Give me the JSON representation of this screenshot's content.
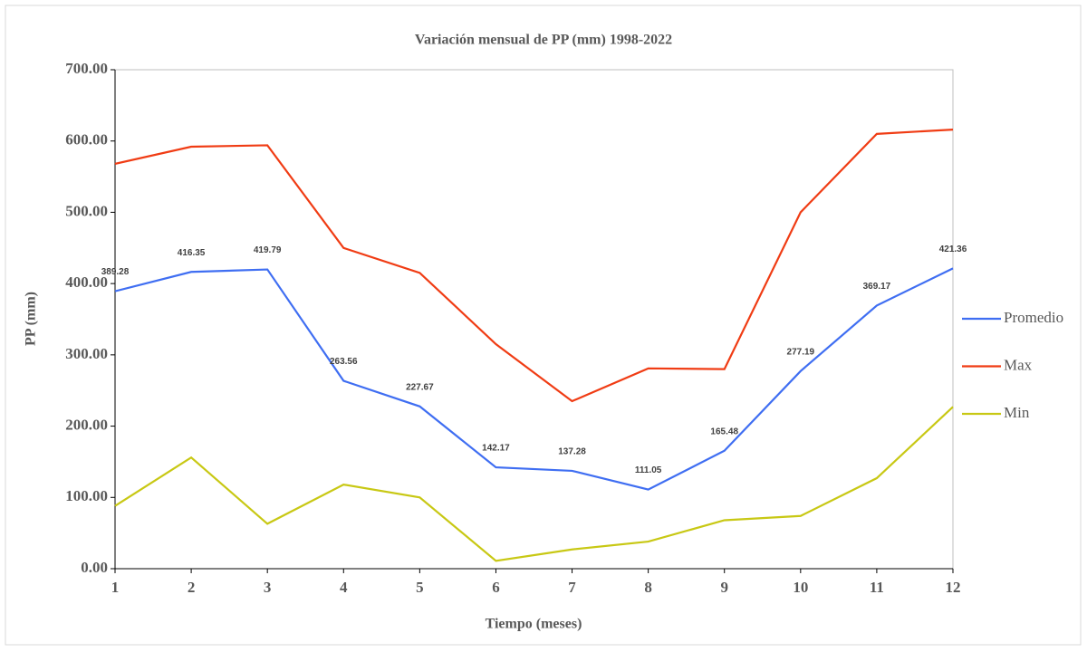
{
  "chart_data": {
    "type": "line",
    "title": "Variación mensual de PP (mm) 1998-2022",
    "x_label": "Tiempo (meses)",
    "y_label": "PP (mm)",
    "x": [
      1,
      2,
      3,
      4,
      5,
      6,
      7,
      8,
      9,
      10,
      11,
      12
    ],
    "series": [
      {
        "name": "Promedio",
        "color": "#3f6ef2",
        "data_labels": true,
        "values": [
          389.28,
          416.35,
          419.79,
          263.56,
          227.67,
          142.17,
          137.28,
          111.05,
          165.48,
          277.19,
          369.17,
          421.36
        ]
      },
      {
        "name": "Max",
        "color": "#f03c14",
        "values": [
          568,
          592,
          594,
          450,
          415,
          315,
          235,
          281,
          280,
          500,
          610,
          616
        ]
      },
      {
        "name": "Min",
        "color": "#c8c814",
        "values": [
          88,
          156,
          63,
          118,
          100,
          11,
          27,
          38,
          68,
          74,
          127,
          227
        ]
      }
    ],
    "xlim": [
      1,
      12
    ],
    "xticks": [
      1,
      2,
      3,
      4,
      5,
      6,
      7,
      8,
      9,
      10,
      11,
      12
    ],
    "ylim": [
      0,
      700
    ],
    "yticks": [
      {
        "value": 0,
        "label": "0.00"
      },
      {
        "value": 100,
        "label": "100.00"
      },
      {
        "value": 200,
        "label": "200.00"
      },
      {
        "value": 300,
        "label": "300.00"
      },
      {
        "value": 400,
        "label": "400.00"
      },
      {
        "value": 500,
        "label": "500.00"
      },
      {
        "value": 600,
        "label": "600.00"
      },
      {
        "value": 700,
        "label": "700.00"
      }
    ],
    "grid": false,
    "legend": "right"
  }
}
